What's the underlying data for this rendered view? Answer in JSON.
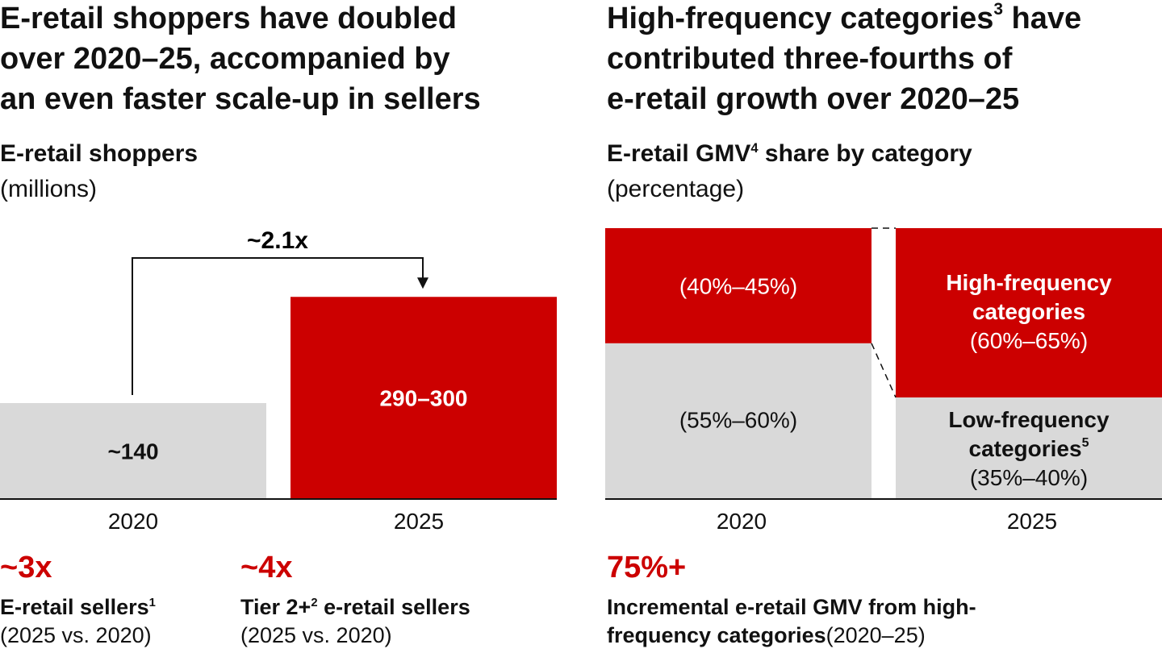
{
  "colors": {
    "accent": "#cc0000",
    "gray": "#d9d9d9",
    "text": "#111111",
    "white": "#ffffff"
  },
  "left": {
    "headline": [
      "E-retail shoppers have doubled",
      "over 2020–25, accompanied by",
      "an even faster scale-up in sellers"
    ],
    "chart_title": "E-retail shoppers",
    "chart_unit": "(millions)",
    "multiplier": "~2.1x",
    "kpis": [
      {
        "value": "~3x",
        "label": "E-retail sellers",
        "label_sup": "1",
        "sub": "(2025 vs. 2020)"
      },
      {
        "value": "~4x",
        "label": "Tier 2+",
        "label_sup": "2",
        "label_rest": " e-retail sellers",
        "sub": "(2025 vs. 2020)"
      }
    ]
  },
  "right": {
    "headline": {
      "line1": "High-frequency categories",
      "line1_sup": "3",
      "line1_rest": " have",
      "line2": "contributed three-fourths of",
      "line3": "e-retail growth over 2020–25"
    },
    "chart_title": "E-retail GMV",
    "chart_title_sup": "4",
    "chart_title_rest": " share by category",
    "chart_unit": "(percentage)",
    "kpi": {
      "value": "75%+",
      "label_line1": "Incremental e-retail GMV from high-",
      "label_line2": "frequency categories",
      "label_sub": "(2020–25)"
    }
  },
  "chart_data": [
    {
      "type": "bar",
      "title": "E-retail shoppers",
      "ylabel": "(millions)",
      "categories": [
        "2020",
        "2025"
      ],
      "values": [
        140,
        295
      ],
      "value_labels": [
        "~140",
        "290–300"
      ],
      "bar_colors": [
        "#d9d9d9",
        "#cc0000"
      ],
      "ylim": [
        0,
        300
      ],
      "annotation": "~2.1x"
    },
    {
      "type": "bar",
      "stacked": true,
      "title": "E-retail GMV share by category",
      "ylabel": "(percentage)",
      "categories": [
        "2020",
        "2025"
      ],
      "series": [
        {
          "name": "Low-frequency categories",
          "name_sup": "5",
          "color": "#d9d9d9",
          "values": [
            57.5,
            37.5
          ],
          "value_labels": [
            "(55%–60%)",
            "(35%–40%)"
          ]
        },
        {
          "name": "High-frequency categories",
          "color": "#cc0000",
          "values": [
            42.5,
            62.5
          ],
          "value_labels": [
            "(40%–45%)",
            "(60%–65%)"
          ]
        }
      ],
      "ylim": [
        0,
        100
      ]
    }
  ]
}
